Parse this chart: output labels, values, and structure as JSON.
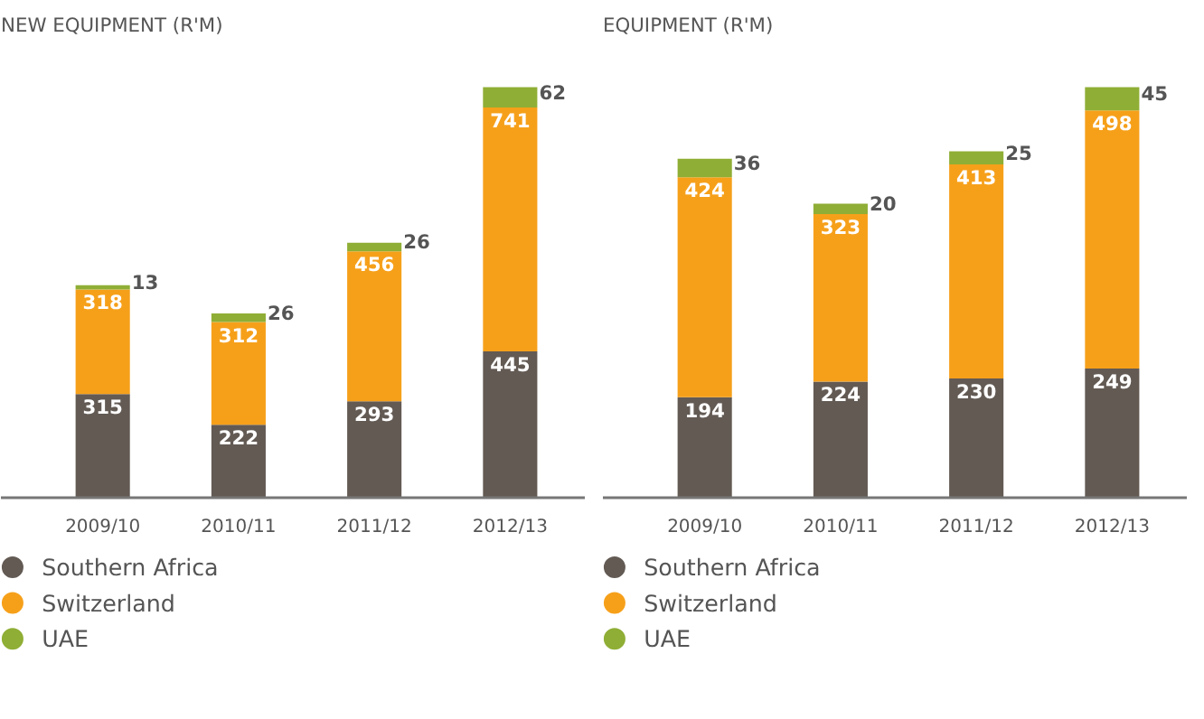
{
  "chart_data": [
    {
      "type": "bar",
      "title": "NEW EQUIPMENT (R'M)",
      "stacked": true,
      "data_labels": true,
      "legend": "bottom",
      "grid": false,
      "categories": [
        "2009/10",
        "2010/11",
        "2011/12",
        "2012/13"
      ],
      "series": [
        {
          "name": "Southern Africa",
          "color": "#635a54",
          "values": [
            315,
            222,
            293,
            445
          ]
        },
        {
          "name": "Switzerland",
          "color": "#f6a01a",
          "values": [
            318,
            312,
            456,
            741
          ]
        },
        {
          "name": "UAE",
          "color": "#8fae35",
          "values": [
            13,
            26,
            26,
            62
          ]
        }
      ]
    },
    {
      "type": "bar",
      "title": "EQUIPMENT (R'M)",
      "stacked": true,
      "data_labels": true,
      "legend": "bottom",
      "grid": false,
      "categories": [
        "2009/10",
        "2010/11",
        "2011/12",
        "2012/13"
      ],
      "series": [
        {
          "name": "Southern Africa",
          "color": "#635a54",
          "values": [
            194,
            224,
            230,
            249
          ]
        },
        {
          "name": "Switzerland",
          "color": "#f6a01a",
          "values": [
            424,
            323,
            413,
            498
          ]
        },
        {
          "name": "UAE",
          "color": "#8fae35",
          "values": [
            36,
            20,
            25,
            45
          ]
        }
      ]
    }
  ]
}
